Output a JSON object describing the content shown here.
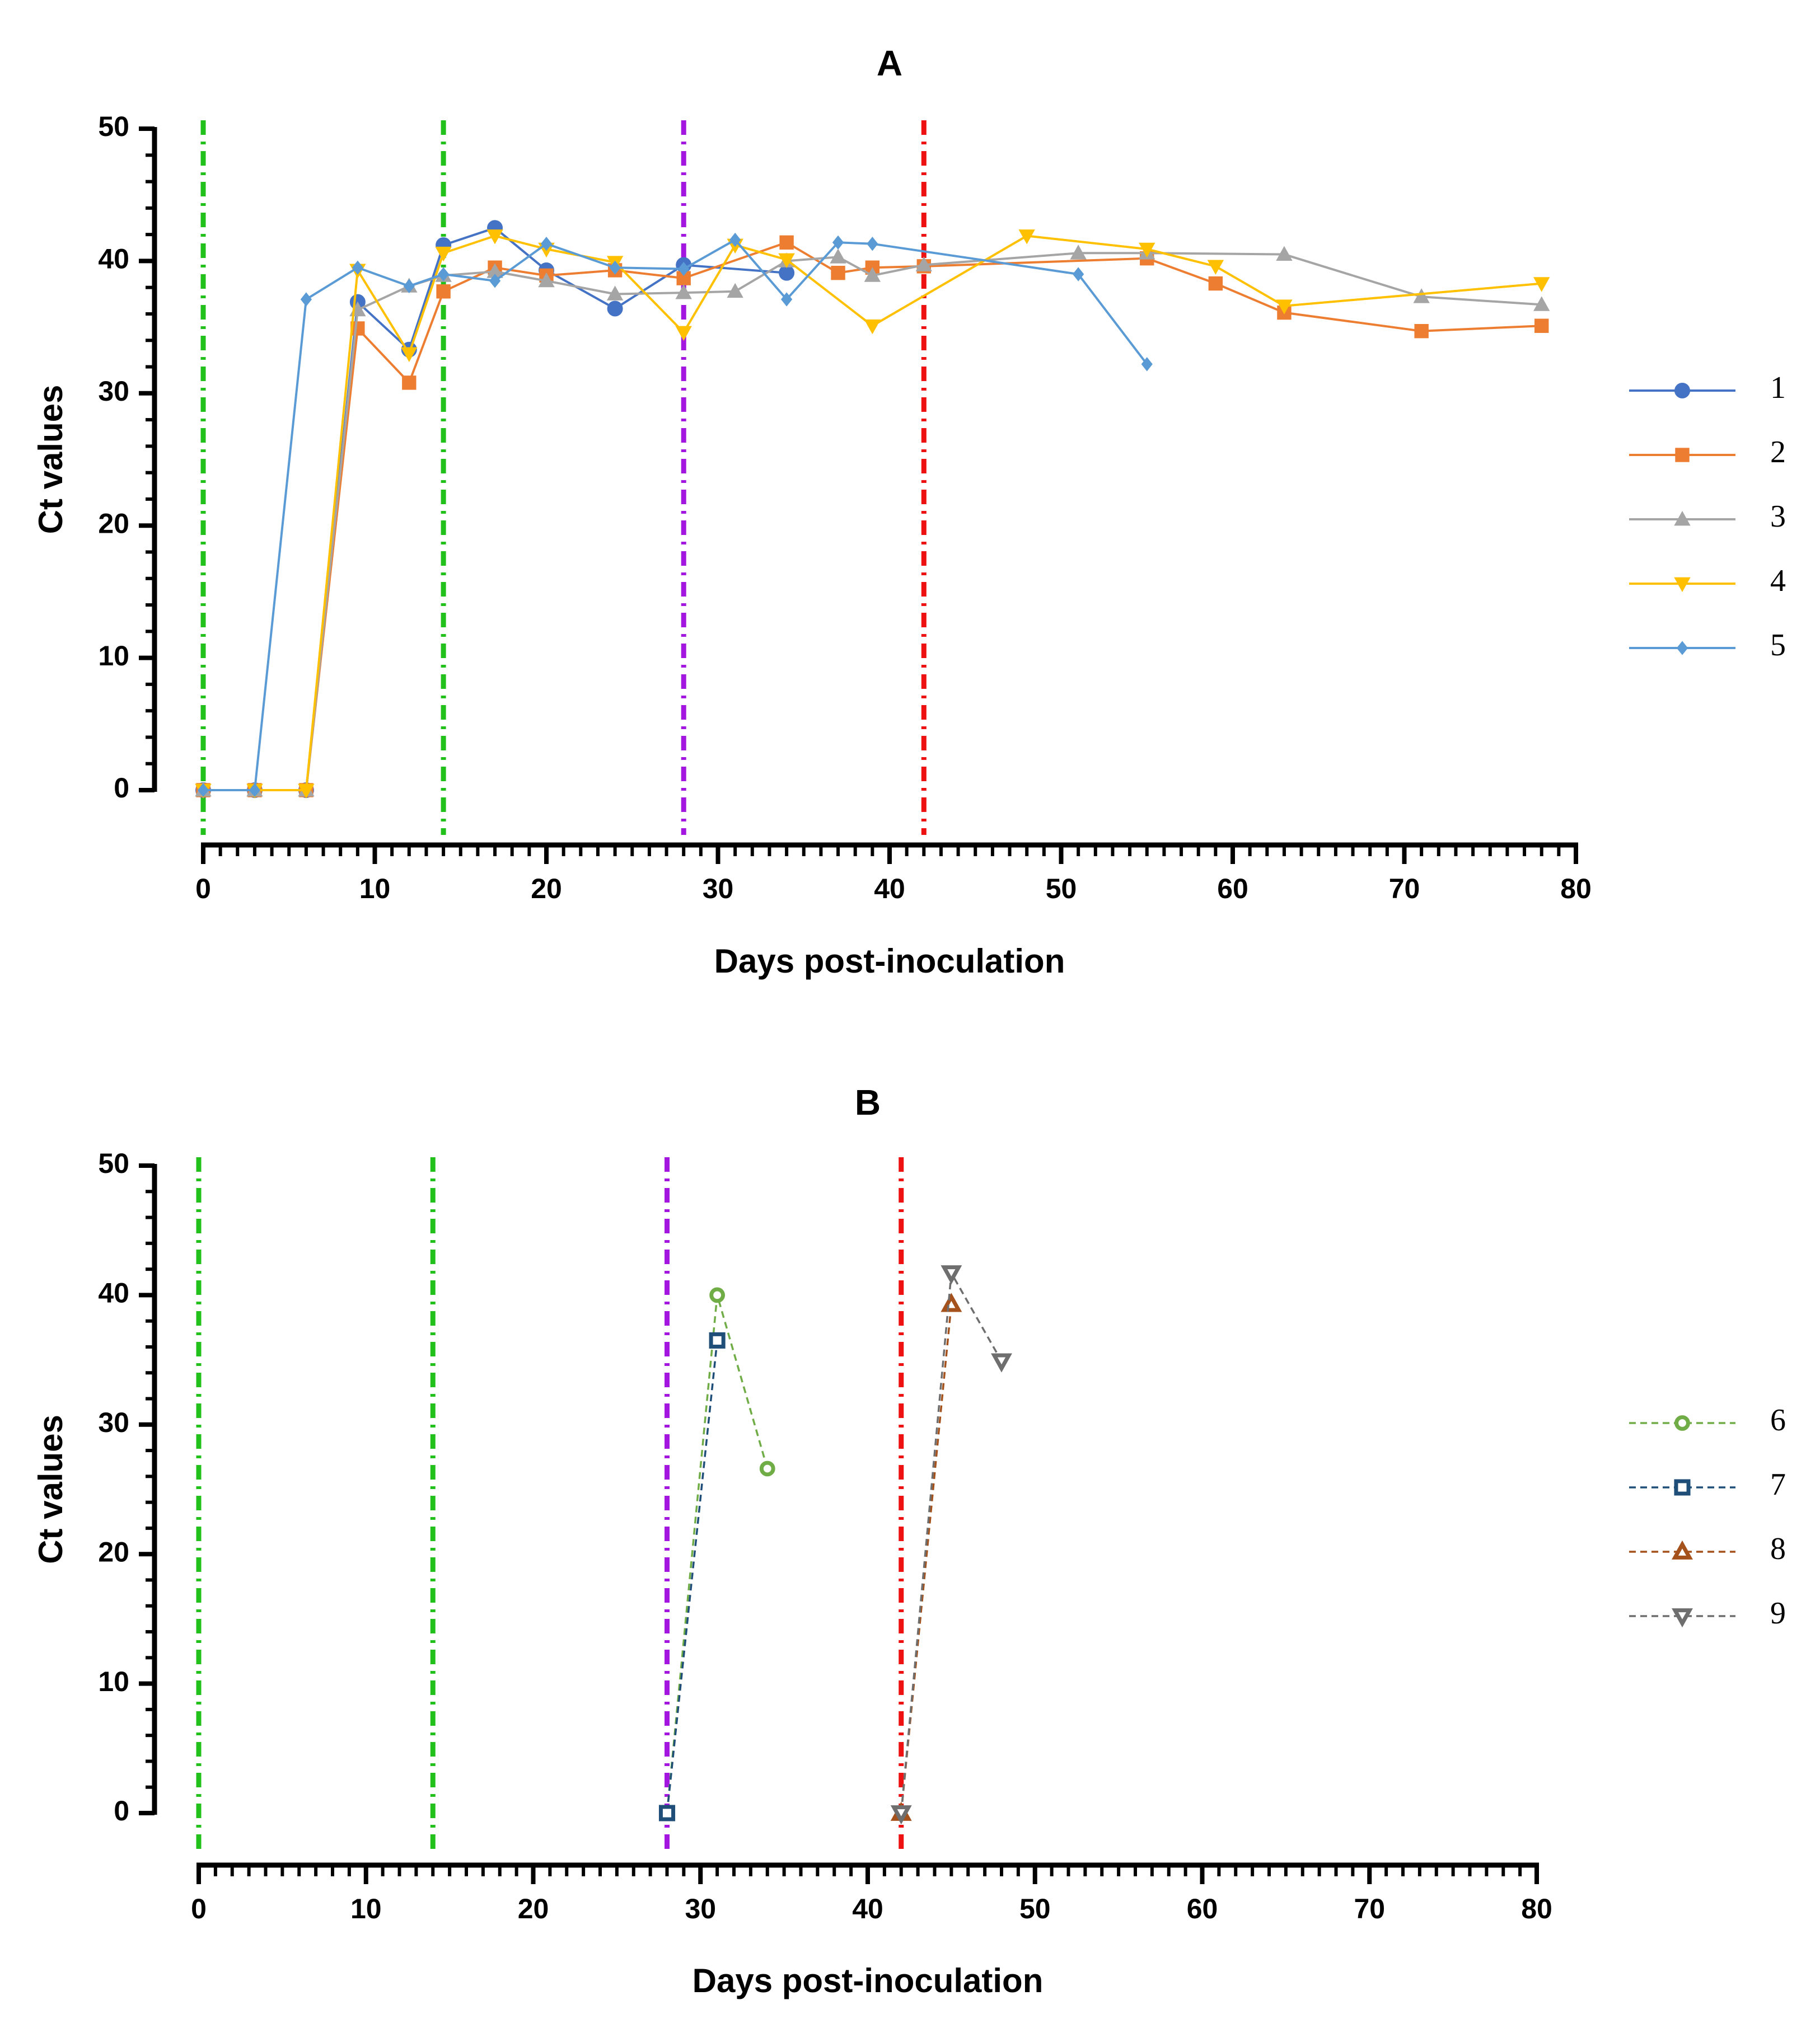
{
  "chart_data": [
    {
      "type": "line",
      "title": "A",
      "xlabel": "Days post-inoculation",
      "ylabel": "Ct values",
      "xlim": [
        0,
        80
      ],
      "ylim": [
        0,
        50
      ],
      "xticks": [
        0,
        10,
        20,
        30,
        40,
        50,
        60,
        70,
        80
      ],
      "yticks": [
        0,
        10,
        20,
        30,
        40,
        50
      ],
      "grid": false,
      "legend_position": "right",
      "vlines": [
        {
          "x": 0,
          "color": "#22c01a"
        },
        {
          "x": 14,
          "color": "#22c01a"
        },
        {
          "x": 28,
          "color": "#a316e0"
        },
        {
          "x": 42,
          "color": "#ee1111"
        }
      ],
      "series": [
        {
          "name": "1",
          "color": "#4472c4",
          "marker": "circle",
          "dash": "solid",
          "x": [
            0,
            3,
            6,
            9,
            12,
            14,
            17,
            20,
            24,
            28,
            34
          ],
          "y": [
            0,
            0,
            0,
            36.9,
            33.3,
            41.2,
            42.5,
            39.3,
            36.4,
            39.7,
            39.1
          ]
        },
        {
          "name": "2",
          "color": "#ed7d31",
          "marker": "square",
          "dash": "solid",
          "x": [
            0,
            3,
            6,
            9,
            12,
            14,
            17,
            20,
            24,
            28,
            34,
            37,
            39,
            42,
            55,
            59,
            63,
            71,
            78
          ],
          "y": [
            0,
            0,
            0,
            34.9,
            30.8,
            37.7,
            39.5,
            38.9,
            39.3,
            38.7,
            41.4,
            39.1,
            39.5,
            39.6,
            40.2,
            38.3,
            36.1,
            34.7,
            35.1
          ]
        },
        {
          "name": "3",
          "color": "#a5a5a5",
          "marker": "triangle-up",
          "dash": "solid",
          "x": [
            0,
            3,
            6,
            9,
            12,
            14,
            17,
            20,
            24,
            28,
            31,
            34,
            37,
            39,
            42,
            51,
            55,
            63,
            71,
            78
          ],
          "y": [
            0,
            0,
            0,
            36.3,
            38.1,
            38.9,
            39.2,
            38.5,
            37.5,
            37.6,
            37.7,
            40.0,
            40.3,
            38.9,
            39.7,
            40.6,
            40.6,
            40.5,
            37.3,
            36.7
          ]
        },
        {
          "name": "4",
          "color": "#ffc000",
          "marker": "triangle-down",
          "dash": "solid",
          "x": [
            0,
            3,
            6,
            9,
            12,
            14,
            17,
            20,
            24,
            28,
            31,
            34,
            39,
            48,
            55,
            59,
            63,
            78
          ],
          "y": [
            0,
            0,
            0,
            39.3,
            33.0,
            40.6,
            41.9,
            40.9,
            39.9,
            34.6,
            41.2,
            40.1,
            35.1,
            41.9,
            40.9,
            39.6,
            36.6,
            38.3
          ]
        },
        {
          "name": "5",
          "color": "#5b9bd5",
          "marker": "diamond",
          "dash": "solid",
          "x": [
            0,
            3,
            6,
            9,
            12,
            14,
            17,
            20,
            24,
            28,
            31,
            34,
            37,
            39,
            51,
            55
          ],
          "y": [
            0,
            0,
            37.1,
            39.5,
            38.1,
            39.0,
            38.5,
            41.3,
            39.5,
            39.4,
            41.6,
            37.1,
            41.4,
            41.3,
            39.0,
            32.2
          ]
        }
      ]
    },
    {
      "type": "line",
      "title": "B",
      "xlabel": "Days post-inoculation",
      "ylabel": "Ct values",
      "xlim": [
        0,
        80
      ],
      "ylim": [
        0,
        50
      ],
      "xticks": [
        0,
        10,
        20,
        30,
        40,
        50,
        60,
        70,
        80
      ],
      "yticks": [
        0,
        10,
        20,
        30,
        40,
        50
      ],
      "grid": false,
      "legend_position": "right",
      "vlines": [
        {
          "x": 0,
          "color": "#22c01a"
        },
        {
          "x": 14,
          "color": "#22c01a"
        },
        {
          "x": 28,
          "color": "#a316e0"
        },
        {
          "x": 42,
          "color": "#ee1111"
        }
      ],
      "series": [
        {
          "name": "6",
          "color": "#70ad47",
          "marker": "open-circle",
          "dash": "dashed",
          "x": [
            28,
            31,
            34
          ],
          "y": [
            0,
            40.0,
            26.6
          ]
        },
        {
          "name": "7",
          "color": "#1f4e79",
          "marker": "open-square",
          "dash": "dashed",
          "x": [
            28,
            31
          ],
          "y": [
            0,
            36.5
          ]
        },
        {
          "name": "8",
          "color": "#a5511b",
          "marker": "open-triangle-up",
          "dash": "dashed",
          "x": [
            42,
            45
          ],
          "y": [
            0,
            39.3
          ]
        },
        {
          "name": "9",
          "color": "#6e6e6e",
          "marker": "open-triangle-down",
          "dash": "dashed",
          "x": [
            42,
            45,
            48
          ],
          "y": [
            0,
            41.7,
            34.9
          ]
        }
      ]
    }
  ]
}
